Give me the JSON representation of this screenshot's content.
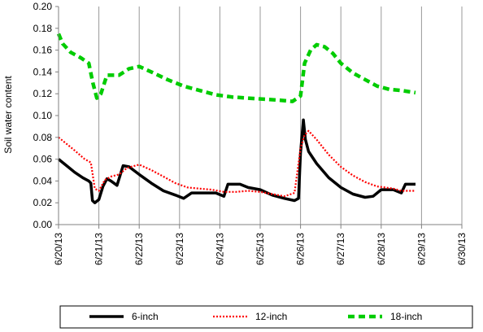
{
  "chart_data": {
    "type": "line",
    "title": "",
    "xlabel": "",
    "ylabel": "Soil water content",
    "ylim": [
      0,
      0.2
    ],
    "y_ticks": [
      "0.00",
      "0.02",
      "0.04",
      "0.06",
      "0.08",
      "0.10",
      "0.12",
      "0.14",
      "0.16",
      "0.18",
      "0.20"
    ],
    "x_ticks": [
      "6/20/13",
      "6/21/13",
      "6/22/13",
      "6/23/13",
      "6/24/13",
      "6/25/13",
      "6/26/13",
      "6/27/13",
      "6/28/13",
      "6/29/13",
      "6/30/13"
    ],
    "x_unit": "days after 6/20/13 (x=0 is 6/20/13)",
    "grid": "vertical lines at each date",
    "legend_position": "bottom",
    "series": [
      {
        "name": "6-inch",
        "color": "#000000",
        "style": "solid",
        "points": [
          [
            0,
            0.06
          ],
          [
            0.2,
            0.054
          ],
          [
            0.4,
            0.048
          ],
          [
            0.6,
            0.043
          ],
          [
            0.75,
            0.04
          ],
          [
            0.8,
            0.038
          ],
          [
            0.84,
            0.022
          ],
          [
            0.9,
            0.02
          ],
          [
            1.0,
            0.023
          ],
          [
            1.1,
            0.035
          ],
          [
            1.2,
            0.042
          ],
          [
            1.3,
            0.04
          ],
          [
            1.45,
            0.036
          ],
          [
            1.6,
            0.054
          ],
          [
            1.75,
            0.053
          ],
          [
            2.0,
            0.046
          ],
          [
            2.3,
            0.038
          ],
          [
            2.6,
            0.031
          ],
          [
            2.9,
            0.027
          ],
          [
            3.1,
            0.024
          ],
          [
            3.3,
            0.029
          ],
          [
            3.6,
            0.029
          ],
          [
            3.9,
            0.029
          ],
          [
            4.1,
            0.026
          ],
          [
            4.2,
            0.037
          ],
          [
            4.5,
            0.037
          ],
          [
            4.7,
            0.034
          ],
          [
            5.0,
            0.032
          ],
          [
            5.3,
            0.027
          ],
          [
            5.6,
            0.024
          ],
          [
            5.85,
            0.022
          ],
          [
            5.95,
            0.024
          ],
          [
            6.0,
            0.066
          ],
          [
            6.07,
            0.096
          ],
          [
            6.12,
            0.078
          ],
          [
            6.2,
            0.067
          ],
          [
            6.4,
            0.056
          ],
          [
            6.7,
            0.043
          ],
          [
            7.0,
            0.034
          ],
          [
            7.3,
            0.028
          ],
          [
            7.6,
            0.025
          ],
          [
            7.8,
            0.026
          ],
          [
            8.0,
            0.032
          ],
          [
            8.3,
            0.032
          ],
          [
            8.5,
            0.029
          ],
          [
            8.6,
            0.037
          ],
          [
            8.85,
            0.037
          ]
        ]
      },
      {
        "name": "12-inch",
        "color": "#ff0000",
        "style": "dotted",
        "points": [
          [
            0,
            0.08
          ],
          [
            0.2,
            0.074
          ],
          [
            0.4,
            0.068
          ],
          [
            0.65,
            0.06
          ],
          [
            0.8,
            0.057
          ],
          [
            0.9,
            0.033
          ],
          [
            1.0,
            0.031
          ],
          [
            1.15,
            0.041
          ],
          [
            1.3,
            0.044
          ],
          [
            1.5,
            0.046
          ],
          [
            1.7,
            0.052
          ],
          [
            2.0,
            0.055
          ],
          [
            2.3,
            0.05
          ],
          [
            2.6,
            0.044
          ],
          [
            2.9,
            0.038
          ],
          [
            3.2,
            0.034
          ],
          [
            3.5,
            0.033
          ],
          [
            3.8,
            0.032
          ],
          [
            4.1,
            0.03
          ],
          [
            4.4,
            0.03
          ],
          [
            4.7,
            0.031
          ],
          [
            5.0,
            0.03
          ],
          [
            5.3,
            0.028
          ],
          [
            5.6,
            0.026
          ],
          [
            5.85,
            0.029
          ],
          [
            6.0,
            0.07
          ],
          [
            6.1,
            0.082
          ],
          [
            6.2,
            0.086
          ],
          [
            6.4,
            0.078
          ],
          [
            6.7,
            0.064
          ],
          [
            7.0,
            0.053
          ],
          [
            7.3,
            0.045
          ],
          [
            7.6,
            0.039
          ],
          [
            7.9,
            0.035
          ],
          [
            8.1,
            0.034
          ],
          [
            8.3,
            0.033
          ],
          [
            8.5,
            0.031
          ],
          [
            8.85,
            0.031
          ]
        ]
      },
      {
        "name": "18-inch",
        "color": "#00cc00",
        "style": "dashed",
        "points": [
          [
            0,
            0.175
          ],
          [
            0.1,
            0.166
          ],
          [
            0.3,
            0.158
          ],
          [
            0.55,
            0.153
          ],
          [
            0.75,
            0.148
          ],
          [
            0.85,
            0.13
          ],
          [
            0.95,
            0.116
          ],
          [
            1.05,
            0.12
          ],
          [
            1.2,
            0.137
          ],
          [
            1.5,
            0.137
          ],
          [
            1.75,
            0.143
          ],
          [
            2.0,
            0.145
          ],
          [
            2.3,
            0.14
          ],
          [
            2.7,
            0.133
          ],
          [
            3.1,
            0.127
          ],
          [
            3.5,
            0.123
          ],
          [
            3.9,
            0.119
          ],
          [
            4.3,
            0.117
          ],
          [
            4.7,
            0.116
          ],
          [
            5.1,
            0.115
          ],
          [
            5.5,
            0.114
          ],
          [
            5.8,
            0.113
          ],
          [
            6.0,
            0.118
          ],
          [
            6.1,
            0.148
          ],
          [
            6.25,
            0.16
          ],
          [
            6.4,
            0.165
          ],
          [
            6.6,
            0.163
          ],
          [
            6.8,
            0.157
          ],
          [
            7.0,
            0.148
          ],
          [
            7.3,
            0.139
          ],
          [
            7.6,
            0.133
          ],
          [
            7.9,
            0.127
          ],
          [
            8.2,
            0.124
          ],
          [
            8.5,
            0.123
          ],
          [
            8.85,
            0.121
          ]
        ]
      }
    ]
  }
}
